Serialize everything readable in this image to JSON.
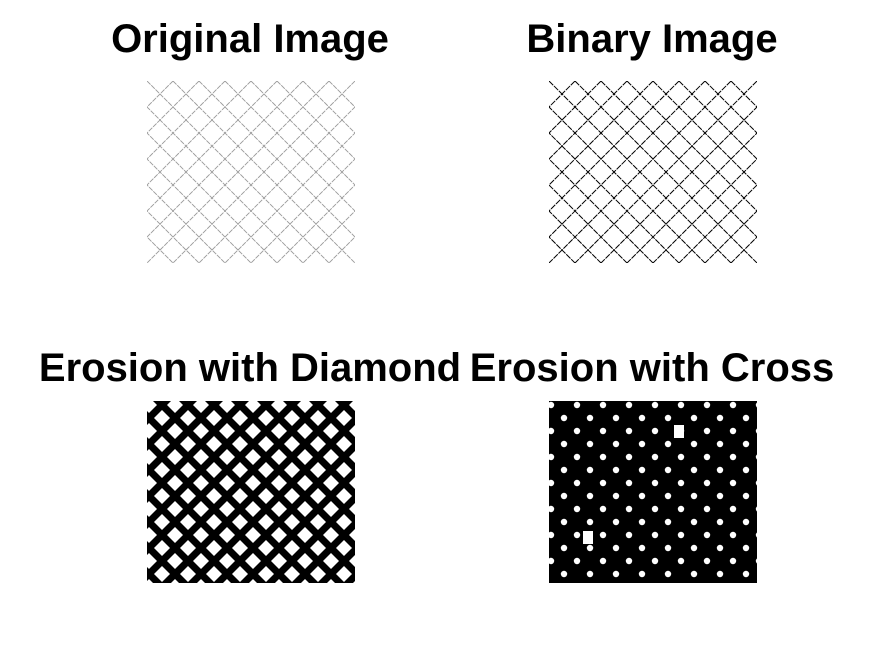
{
  "figure": {
    "panels": [
      {
        "id": "original",
        "title": "Original Image"
      },
      {
        "id": "binary",
        "title": "Binary Image"
      },
      {
        "id": "diamond",
        "title": "Erosion with Diamond"
      },
      {
        "id": "cross",
        "title": "Erosion with Cross"
      }
    ]
  },
  "colors": {
    "background": "#ffffff",
    "foreground": "#000000",
    "faint_line": "#9a9a9a"
  }
}
